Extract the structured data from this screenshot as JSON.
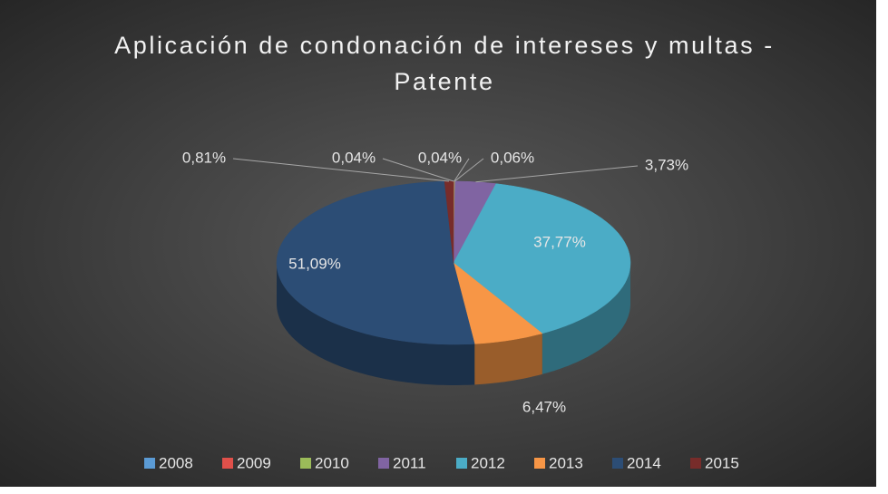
{
  "chart_data": {
    "type": "pie",
    "title": "Aplicación de condonación de intereses y multas - Patente",
    "categories": [
      "2008",
      "2009",
      "2010",
      "2011",
      "2012",
      "2013",
      "2014",
      "2015"
    ],
    "values": [
      0.04,
      0.04,
      0.06,
      3.73,
      37.77,
      6.47,
      51.09,
      0.81
    ],
    "value_labels": [
      "0,04%",
      "0,04%",
      "0,06%",
      "3,73%",
      "37,77%",
      "6,47%",
      "51,09%",
      "0,81%"
    ],
    "colors": [
      "#5b9bd5",
      "#e0504a",
      "#9bbb59",
      "#8064a2",
      "#4bacc6",
      "#f79646",
      "#2c4d75",
      "#772c2a"
    ],
    "legend": "bottom"
  }
}
